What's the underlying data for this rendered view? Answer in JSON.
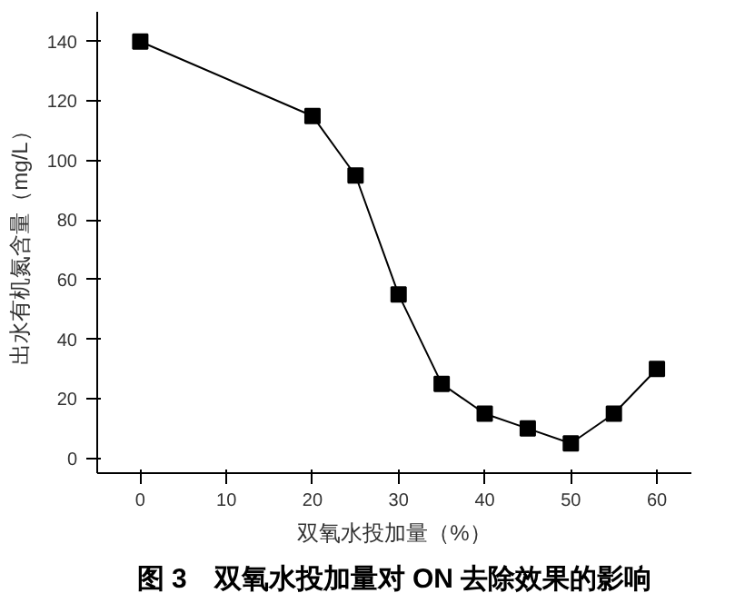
{
  "chart_data": {
    "type": "line",
    "title": "图 3　双氧水投加量对 ON 去除效果的影响",
    "xlabel": "双氧水投加量（%）",
    "ylabel": "出水有机氮含量（mg/L）",
    "x": [
      0,
      20,
      25,
      30,
      35,
      40,
      45,
      50,
      55,
      60
    ],
    "series": [
      {
        "color": "#000000",
        "values": [
          140,
          115,
          95,
          55,
          25,
          15,
          10,
          5,
          15,
          30
        ]
      }
    ],
    "xlim": [
      -5,
      64
    ],
    "ylim": [
      -5,
      150
    ],
    "xticks": [
      0,
      10,
      20,
      30,
      40,
      50,
      60
    ],
    "yticks": [
      0,
      20,
      40,
      60,
      80,
      100,
      120,
      140
    ],
    "grid": false,
    "marker": "square",
    "line_style": "solid"
  }
}
